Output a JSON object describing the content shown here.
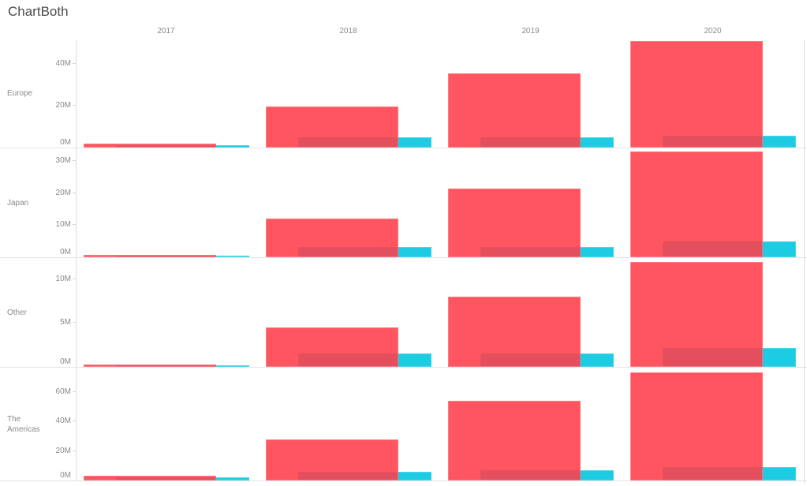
{
  "chart_data": {
    "type": "bar",
    "title": "ChartBoth",
    "unit": "M",
    "legend_position": "none",
    "grid": "off",
    "columns": [
      "2017",
      "2018",
      "2019",
      "2020"
    ],
    "rows": [
      {
        "region": "Europe",
        "ylim": [
          0,
          52
        ],
        "ticks": [
          {
            "label": "0M",
            "value": 0
          },
          {
            "label": "20M",
            "value": 20
          },
          {
            "label": "40M",
            "value": 40
          }
        ],
        "series": [
          {
            "name": "red",
            "values": [
              2,
              19.5,
              35.5,
              51
            ]
          },
          {
            "name": "cyan",
            "values": [
              1.3,
              5,
              5,
              5.5
            ]
          }
        ]
      },
      {
        "region": "Japan",
        "ylim": [
          0,
          34.3
        ],
        "ticks": [
          {
            "label": "0M",
            "value": 0
          },
          {
            "label": "10M",
            "value": 10
          },
          {
            "label": "20M",
            "value": 20
          },
          {
            "label": "30M",
            "value": 30
          }
        ],
        "series": [
          {
            "name": "red",
            "values": [
              0.8,
              12,
              21.5,
              33
            ]
          },
          {
            "name": "cyan",
            "values": [
              0.4,
              3.3,
              3.3,
              5
            ]
          }
        ]
      },
      {
        "region": "Other",
        "ylim": [
          0,
          12.5
        ],
        "ticks": [
          {
            "label": "0M",
            "value": 0
          },
          {
            "label": "5M",
            "value": 5
          },
          {
            "label": "10M",
            "value": 10
          }
        ],
        "series": [
          {
            "name": "red",
            "values": [
              0.3,
              4.5,
              8,
              12
            ]
          },
          {
            "name": "cyan",
            "values": [
              0.15,
              1.5,
              1.5,
              2.2
            ]
          }
        ]
      },
      {
        "region": "The Americas",
        "ylim": [
          0,
          77
        ],
        "ticks": [
          {
            "label": "0M",
            "value": 0
          },
          {
            "label": "20M",
            "value": 20
          },
          {
            "label": "40M",
            "value": 40
          },
          {
            "label": "60M",
            "value": 60
          }
        ],
        "series": [
          {
            "name": "red",
            "values": [
              3,
              28,
              54,
              73
            ]
          },
          {
            "name": "cyan",
            "values": [
              2,
              6,
              7,
              9
            ]
          }
        ]
      }
    ]
  },
  "colors": {
    "red_base": "#FF3D4A",
    "red_alpha": "0.88",
    "cyan": "#1DCBE3",
    "row_separator": "#E4E4E6",
    "axis_line": "#DCDCDC",
    "tick_text": "#8A8A8A",
    "header_text": "#8A8A8A",
    "title_text": "#4C4C4C",
    "background": "#FFFFFF"
  }
}
